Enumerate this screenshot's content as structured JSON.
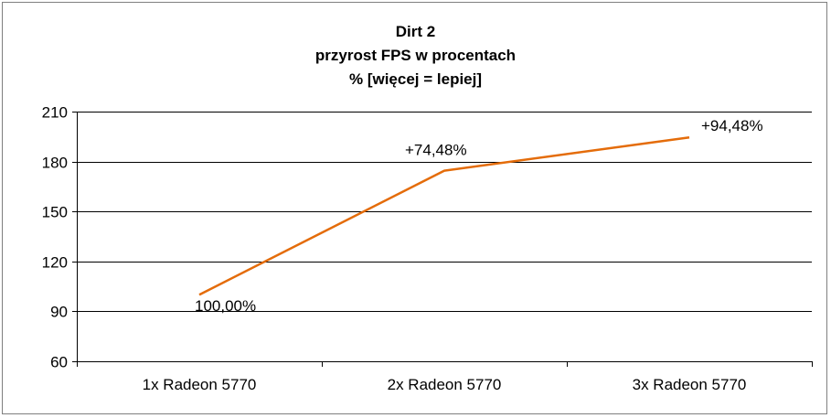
{
  "chart_data": {
    "type": "line",
    "title": [
      "Dirt 2",
      "przyrost FPS w procentach",
      "% [więcej = lepiej]"
    ],
    "categories": [
      "1x Radeon 5770",
      "2x Radeon 5770",
      "3x Radeon 5770"
    ],
    "series": [
      {
        "values": [
          100,
          174.48,
          194.48
        ],
        "labels": [
          "100,00%",
          "+74,48%",
          "+94,48%"
        ],
        "color": "#e46c0a"
      }
    ],
    "ylim": [
      60,
      210
    ],
    "yticks": [
      60,
      90,
      120,
      150,
      180,
      210
    ],
    "grid": true,
    "legend": "none"
  }
}
